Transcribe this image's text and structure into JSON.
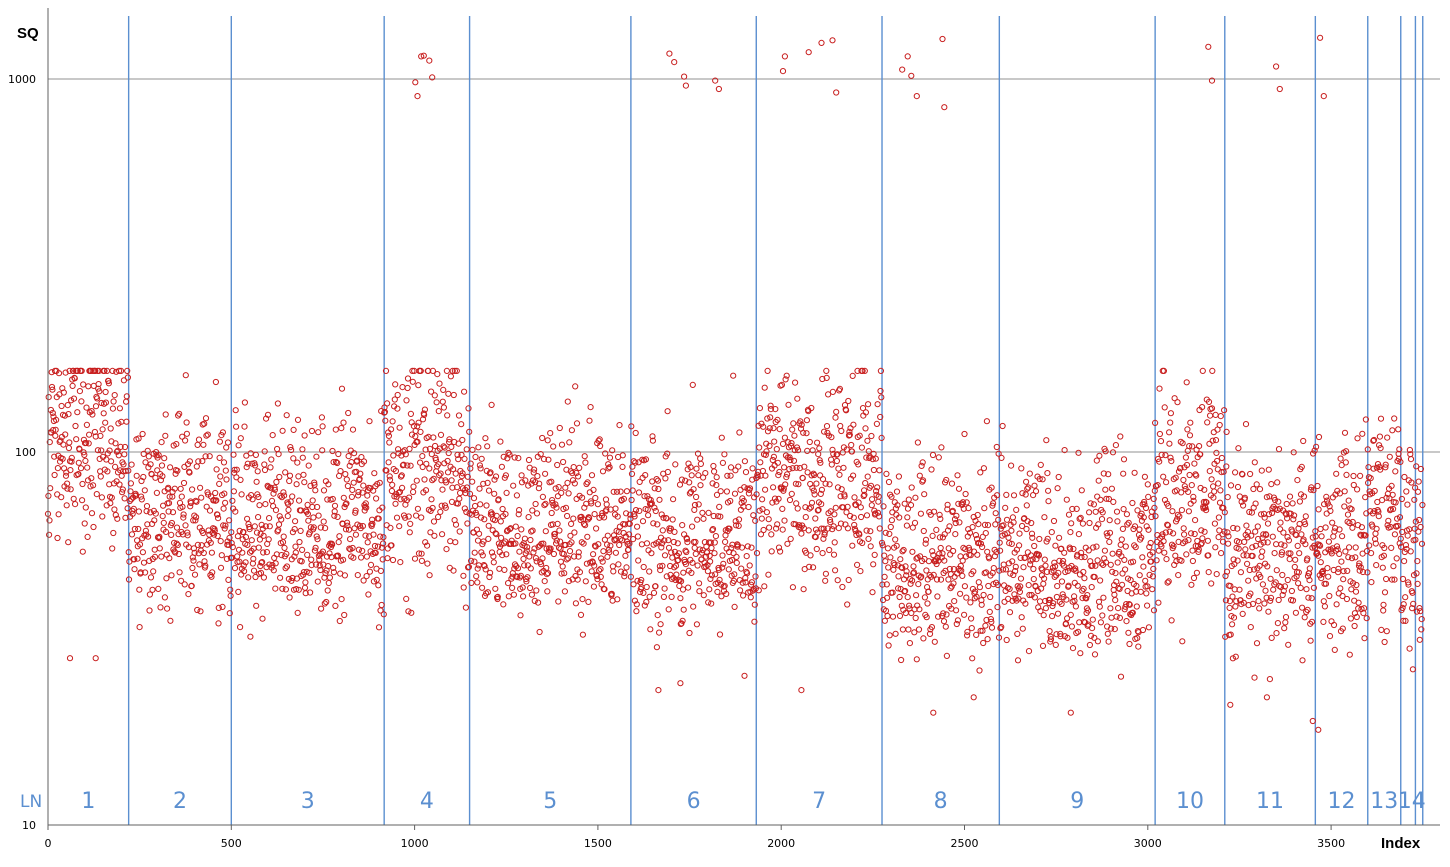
{
  "chart_data": {
    "type": "scatter",
    "ylabel": "SQ",
    "xlabel": "Index",
    "group_axis_label": "LN",
    "y_scale": "log",
    "ylim": [
      10,
      1500
    ],
    "xlim": [
      0,
      3800
    ],
    "x_ticks": [
      0,
      500,
      1000,
      1500,
      2000,
      2500,
      3000,
      3500
    ],
    "x_tick_labels": [
      "0",
      "500",
      "1000",
      "1500",
      "2000",
      "2500",
      "3000",
      "3500"
    ],
    "y_ticks": [
      10,
      100,
      1000
    ],
    "y_tick_labels": [
      "10",
      "100",
      "1000"
    ],
    "grid": "horizontal at 10, 100, 1000",
    "marker": "open circle",
    "colors": {
      "points": "#c81e1e",
      "separators": "#5b8fd0",
      "grid": "#909090"
    },
    "separators": [
      220,
      500,
      917,
      1150,
      1590,
      1932,
      2275,
      2595,
      3020,
      3210,
      3457,
      3600,
      3690,
      3730,
      3750
    ],
    "groups": [
      {
        "label": "1",
        "start": 0,
        "end": 220,
        "base": 95,
        "spread": 0.24
      },
      {
        "label": "2",
        "start": 220,
        "end": 500,
        "base": 58,
        "spread": 0.17
      },
      {
        "label": "3",
        "start": 500,
        "end": 917,
        "base": 55,
        "spread": 0.16
      },
      {
        "label": "4",
        "start": 917,
        "end": 1150,
        "base": 78,
        "spread": 0.24
      },
      {
        "label": "5",
        "start": 1150,
        "end": 1590,
        "base": 55,
        "spread": 0.15
      },
      {
        "label": "6",
        "start": 1590,
        "end": 1932,
        "base": 50,
        "spread": 0.16
      },
      {
        "label": "7",
        "start": 1932,
        "end": 2275,
        "base": 72,
        "spread": 0.2
      },
      {
        "label": "8",
        "start": 2275,
        "end": 2595,
        "base": 45,
        "spread": 0.16
      },
      {
        "label": "9",
        "start": 2595,
        "end": 3020,
        "base": 44,
        "spread": 0.16
      },
      {
        "label": "10",
        "start": 3020,
        "end": 3210,
        "base": 65,
        "spread": 0.2
      },
      {
        "label": "11",
        "start": 3210,
        "end": 3457,
        "base": 45,
        "spread": 0.17
      },
      {
        "label": "12",
        "start": 3457,
        "end": 3600,
        "base": 48,
        "spread": 0.18
      },
      {
        "label": "13",
        "start": 3600,
        "end": 3690,
        "base": 58,
        "spread": 0.2
      },
      {
        "label": "14",
        "start": 3690,
        "end": 3750,
        "base": 50,
        "spread": 0.2
      }
    ],
    "high_outliers": [
      [
        1002,
        980
      ],
      [
        1008,
        900
      ],
      [
        1018,
        1150
      ],
      [
        1025,
        1155
      ],
      [
        1040,
        1120
      ],
      [
        1048,
        1010
      ],
      [
        1695,
        1170
      ],
      [
        1708,
        1110
      ],
      [
        1735,
        1015
      ],
      [
        1740,
        960
      ],
      [
        1820,
        990
      ],
      [
        1830,
        940
      ],
      [
        2005,
        1050
      ],
      [
        2010,
        1150
      ],
      [
        2075,
        1180
      ],
      [
        2110,
        1250
      ],
      [
        2140,
        1270
      ],
      [
        2150,
        920
      ],
      [
        2330,
        1060
      ],
      [
        2345,
        1150
      ],
      [
        2355,
        1020
      ],
      [
        2370,
        900
      ],
      [
        2440,
        1280
      ],
      [
        2445,
        840
      ],
      [
        3165,
        1220
      ],
      [
        3175,
        990
      ],
      [
        3350,
        1080
      ],
      [
        3360,
        940
      ],
      [
        3470,
        1290
      ],
      [
        3480,
        900
      ]
    ],
    "low_outliers": [
      [
        60,
        28
      ],
      [
        130,
        28
      ],
      [
        1665,
        23
      ],
      [
        1725,
        24
      ],
      [
        2055,
        23
      ],
      [
        2525,
        22
      ],
      [
        2790,
        20
      ],
      [
        3325,
        22
      ],
      [
        3450,
        19
      ],
      [
        3465,
        18
      ],
      [
        3225,
        21
      ],
      [
        2415,
        20
      ]
    ]
  }
}
